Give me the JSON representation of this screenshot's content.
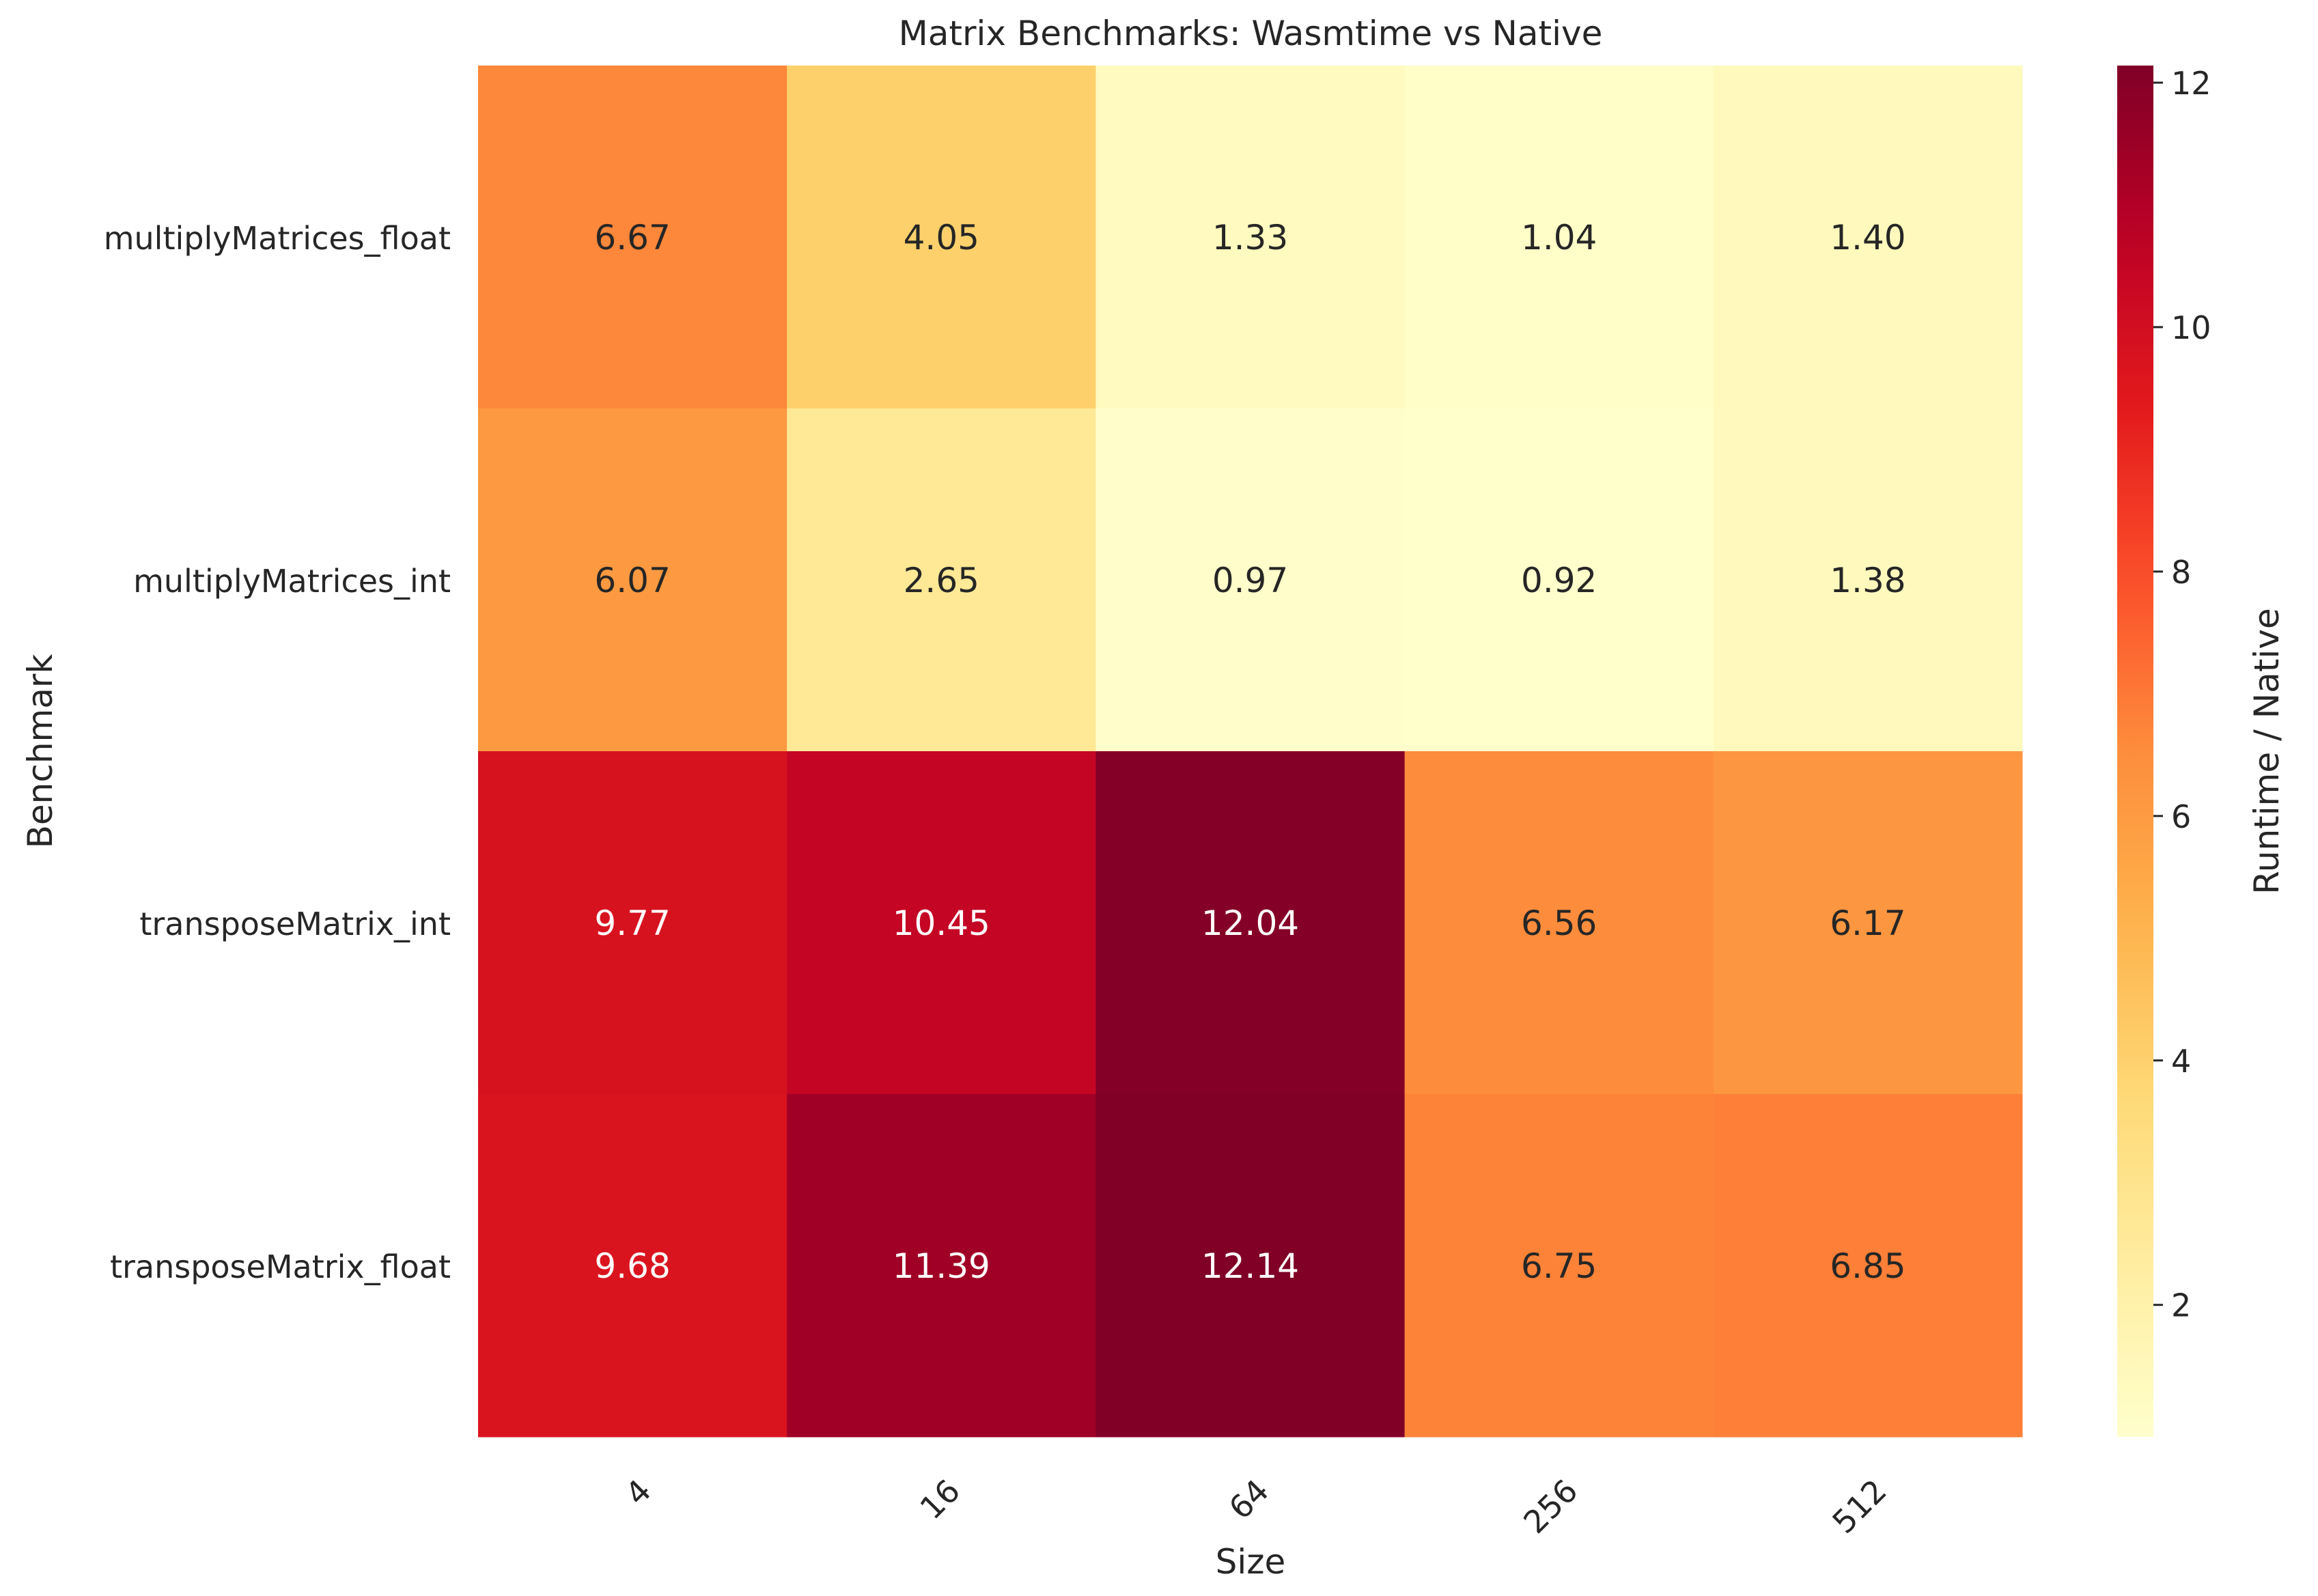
{
  "chart_data": {
    "type": "heatmap",
    "title": "Matrix Benchmarks: Wasmtime vs Native",
    "xlabel": "Size",
    "ylabel": "Benchmark",
    "x_categories": [
      "4",
      "16",
      "64",
      "256",
      "512"
    ],
    "y_categories": [
      "multiplyMatrices_float",
      "multiplyMatrices_int",
      "transposeMatrix_int",
      "transposeMatrix_float"
    ],
    "values": [
      [
        6.67,
        4.05,
        1.33,
        1.04,
        1.4
      ],
      [
        6.07,
        2.65,
        0.97,
        0.92,
        1.38
      ],
      [
        9.77,
        10.45,
        12.04,
        6.56,
        6.17
      ],
      [
        9.68,
        11.39,
        12.14,
        6.75,
        6.85
      ]
    ],
    "value_labels": [
      [
        "6.67",
        "4.05",
        "1.33",
        "1.04",
        "1.40"
      ],
      [
        "6.07",
        "2.65",
        "0.97",
        "0.92",
        "1.38"
      ],
      [
        "9.77",
        "10.45",
        "12.04",
        "6.56",
        "6.17"
      ],
      [
        "9.68",
        "11.39",
        "12.14",
        "6.75",
        "6.85"
      ]
    ],
    "colorbar": {
      "label": "Runtime / Native",
      "range": [
        0.92,
        12.14
      ],
      "ticks": [
        2,
        4,
        6,
        8,
        10,
        12
      ],
      "tick_labels": [
        "2",
        "4",
        "6",
        "8",
        "10",
        "12"
      ],
      "colormap": "YlOrRd"
    },
    "grid": false
  }
}
